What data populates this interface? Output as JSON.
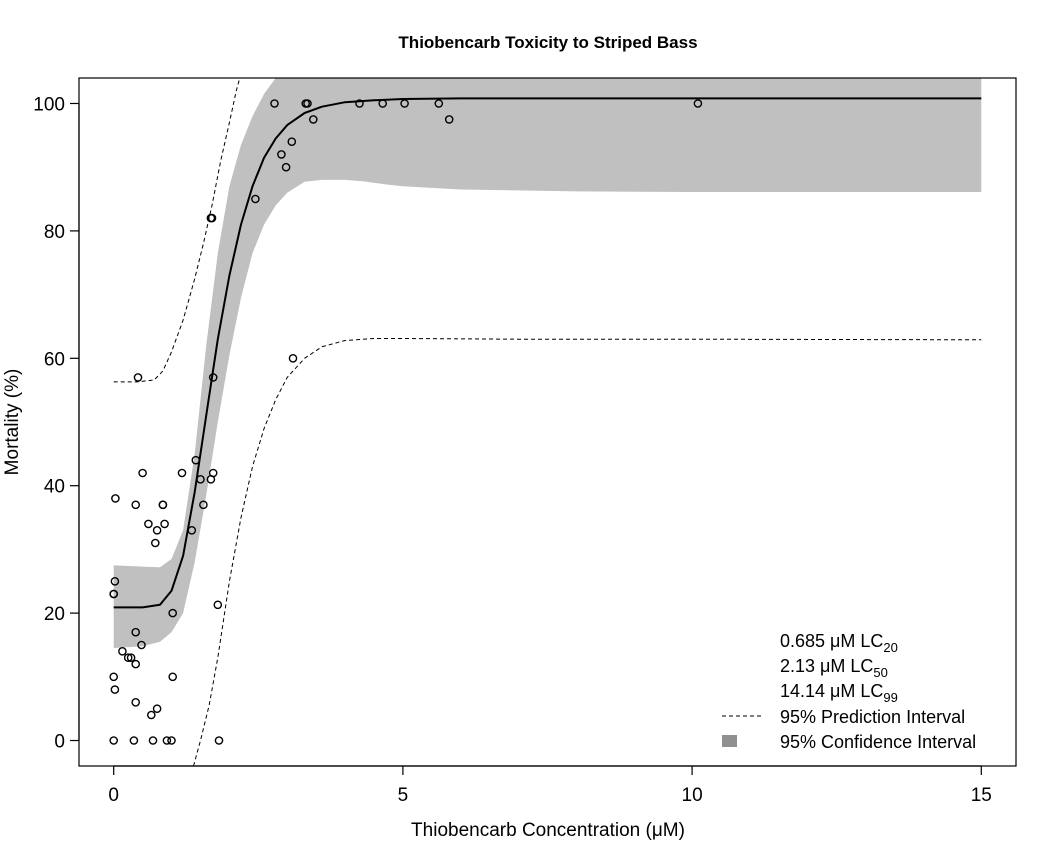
{
  "chart_data": {
    "type": "scatter",
    "title": "Thiobencarb Toxicity to Striped Bass",
    "xlabel": "Thiobencarb Concentration (μM)",
    "ylabel": "Mortality (%)",
    "xlim": [
      -0.6,
      15.6
    ],
    "ylim": [
      -4,
      104
    ],
    "xticks": [
      0,
      5,
      10,
      15
    ],
    "yticks": [
      0,
      20,
      40,
      60,
      80,
      100
    ],
    "grid": false,
    "legend_position": "bottom-right",
    "legend": {
      "lc_lines": [
        {
          "value": "0.685 μM LC",
          "sub": "20"
        },
        {
          "value": "2.13 μM LC",
          "sub": "50"
        },
        {
          "value": "14.14 μM LC",
          "sub": "99"
        }
      ],
      "prediction_label": "95% Prediction Interval",
      "confidence_label": "95% Confidence Interval"
    },
    "colors": {
      "points": "#000000",
      "fit": "#000000",
      "confidence_band": "#c0c0c0",
      "confidence_legend": "#909090"
    },
    "observations": [
      {
        "x": 0.0,
        "y": 0
      },
      {
        "x": 0.0,
        "y": 10
      },
      {
        "x": 0.02,
        "y": 8
      },
      {
        "x": 0.0,
        "y": 23
      },
      {
        "x": 0.0,
        "y": 23
      },
      {
        "x": 0.02,
        "y": 25
      },
      {
        "x": 0.03,
        "y": 38
      },
      {
        "x": 0.15,
        "y": 14
      },
      {
        "x": 0.25,
        "y": 13
      },
      {
        "x": 0.3,
        "y": 13
      },
      {
        "x": 0.35,
        "y": 0
      },
      {
        "x": 0.38,
        "y": 6
      },
      {
        "x": 0.38,
        "y": 12
      },
      {
        "x": 0.38,
        "y": 17
      },
      {
        "x": 0.38,
        "y": 37
      },
      {
        "x": 0.42,
        "y": 57
      },
      {
        "x": 0.48,
        "y": 15
      },
      {
        "x": 0.5,
        "y": 42
      },
      {
        "x": 0.6,
        "y": 34
      },
      {
        "x": 0.65,
        "y": 4
      },
      {
        "x": 0.68,
        "y": 0
      },
      {
        "x": 0.72,
        "y": 31
      },
      {
        "x": 0.75,
        "y": 33
      },
      {
        "x": 0.75,
        "y": 5
      },
      {
        "x": 0.85,
        "y": 37
      },
      {
        "x": 0.85,
        "y": 37
      },
      {
        "x": 0.88,
        "y": 34
      },
      {
        "x": 0.92,
        "y": 0
      },
      {
        "x": 1.0,
        "y": 0
      },
      {
        "x": 1.02,
        "y": 20
      },
      {
        "x": 1.02,
        "y": 10
      },
      {
        "x": 1.18,
        "y": 42
      },
      {
        "x": 1.35,
        "y": 33
      },
      {
        "x": 1.42,
        "y": 44
      },
      {
        "x": 1.5,
        "y": 41
      },
      {
        "x": 1.55,
        "y": 37
      },
      {
        "x": 1.68,
        "y": 41
      },
      {
        "x": 1.68,
        "y": 82
      },
      {
        "x": 1.7,
        "y": 82
      },
      {
        "x": 1.72,
        "y": 57
      },
      {
        "x": 1.72,
        "y": 42
      },
      {
        "x": 1.8,
        "y": 21.3
      },
      {
        "x": 1.82,
        "y": 0
      },
      {
        "x": 2.45,
        "y": 85
      },
      {
        "x": 2.78,
        "y": 100
      },
      {
        "x": 2.9,
        "y": 92
      },
      {
        "x": 2.98,
        "y": 90
      },
      {
        "x": 3.08,
        "y": 94
      },
      {
        "x": 3.1,
        "y": 60
      },
      {
        "x": 3.32,
        "y": 100
      },
      {
        "x": 3.35,
        "y": 100
      },
      {
        "x": 3.45,
        "y": 97.5
      },
      {
        "x": 4.25,
        "y": 100
      },
      {
        "x": 4.65,
        "y": 100
      },
      {
        "x": 5.03,
        "y": 100
      },
      {
        "x": 5.62,
        "y": 100
      },
      {
        "x": 5.8,
        "y": 97.5
      },
      {
        "x": 10.1,
        "y": 100
      }
    ],
    "fit_line": {
      "x": [
        0,
        0.5,
        0.8,
        1.0,
        1.2,
        1.4,
        1.6,
        1.8,
        2.0,
        2.2,
        2.4,
        2.6,
        2.8,
        3.0,
        3.3,
        3.6,
        4.0,
        4.5,
        5.0,
        6.0,
        8.0,
        10.0,
        15.0
      ],
      "y": [
        20.9,
        20.9,
        21.3,
        23.5,
        29,
        39,
        51,
        63,
        73,
        81,
        87,
        91.5,
        94.5,
        96.6,
        98.5,
        99.5,
        100.2,
        100.5,
        100.7,
        100.8,
        100.8,
        100.8,
        100.8
      ]
    },
    "confidence_band": {
      "x": [
        0,
        0.5,
        0.8,
        1.0,
        1.2,
        1.4,
        1.6,
        1.8,
        2.0,
        2.2,
        2.4,
        2.6,
        2.8,
        3.0,
        3.3,
        3.6,
        4.0,
        4.3,
        4.7,
        5.0,
        6.0,
        8.0,
        10.0,
        15.0
      ],
      "lower": [
        14.5,
        14.8,
        15.5,
        17,
        20,
        28,
        38.5,
        50,
        60.5,
        69.5,
        76.5,
        81,
        84,
        86,
        87.7,
        88,
        88,
        87.8,
        87.3,
        87,
        86.5,
        86.2,
        86.1,
        86.1
      ],
      "upper": [
        27.5,
        27.3,
        27.2,
        28.5,
        33,
        45,
        62,
        76.5,
        87,
        93.5,
        98,
        101.5,
        104,
        104,
        104,
        104,
        104,
        104,
        104,
        104,
        104,
        104,
        104,
        104
      ]
    },
    "prediction_interval": {
      "upper": {
        "x": [
          0,
          0.4,
          0.7,
          0.85,
          1.0,
          1.2,
          1.4,
          1.55,
          1.7,
          1.85,
          2.0,
          2.12,
          2.18
        ],
        "y": [
          56.3,
          56.3,
          56.6,
          58,
          61,
          66,
          72.5,
          78,
          84,
          91,
          97,
          102,
          104
        ]
      },
      "lower": {
        "x": [
          1.38,
          1.5,
          1.65,
          1.8,
          2.0,
          2.2,
          2.4,
          2.6,
          2.8,
          3.0,
          3.3,
          3.6,
          4.0,
          4.5,
          5.0,
          7.0,
          10.0,
          15.0
        ],
        "y": [
          -4,
          0,
          5.5,
          13,
          25,
          35,
          43,
          49,
          53.5,
          57,
          60,
          61.8,
          62.8,
          63.1,
          63.1,
          63,
          63,
          62.9
        ]
      }
    }
  }
}
